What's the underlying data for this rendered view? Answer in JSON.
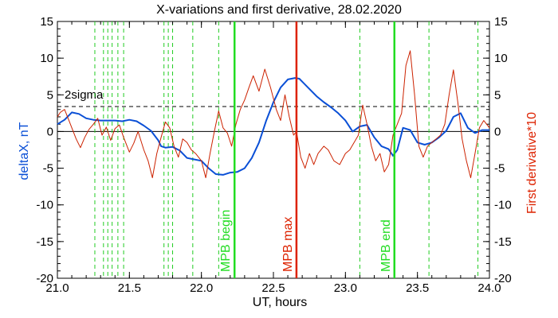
{
  "chart_data": {
    "type": "line",
    "title": "X-variations and first derivative, 28.02.2020",
    "xlabel": "UT, hours",
    "ylabel_left": "deltaX, nT",
    "ylabel_right": "First derivative*10",
    "xlim": [
      21.0,
      24.0
    ],
    "ylim": [
      -20,
      15
    ],
    "x_ticks": [
      "21.0",
      "21.5",
      "22.0",
      "22.5",
      "23.0",
      "23.5",
      "24.0"
    ],
    "y_ticks": [
      "-20",
      "-15",
      "-10",
      "-5",
      "0",
      "5",
      "10",
      "15"
    ],
    "y_tick_values": [
      -20,
      -15,
      -10,
      -5,
      0,
      5,
      10,
      15
    ],
    "x_tick_values": [
      21.0,
      21.5,
      22.0,
      22.5,
      23.0,
      23.5,
      24.0
    ],
    "sigma_label": "2sigma",
    "sigma_level": 3.4,
    "zero_line": 0,
    "colors": {
      "deltaX": "#0a4fd6",
      "derivative": "#cc2200",
      "mpb_boundary": "#22dd22",
      "mpb_max": "#dd2200",
      "dashed_marker": "#22cc22",
      "sigma": "#000000",
      "right_axis_label": "#dd2200",
      "left_axis_label": "#0a4fd6"
    },
    "dashed_markers_x": [
      21.26,
      21.32,
      21.35,
      21.38,
      21.42,
      21.46,
      21.74,
      21.77,
      21.8,
      21.94,
      22.12,
      23.1,
      23.58,
      23.92
    ],
    "vertical_lines": [
      {
        "x": 22.23,
        "label": "MPB begin",
        "color": "#22dd22"
      },
      {
        "x": 22.66,
        "label": "MPB max",
        "color": "#dd2200"
      },
      {
        "x": 23.34,
        "label": "MPB end",
        "color": "#22dd22"
      }
    ],
    "series": [
      {
        "name": "deltaX",
        "axis": "left",
        "x": [
          21.0,
          21.05,
          21.1,
          21.15,
          21.2,
          21.25,
          21.3,
          21.35,
          21.4,
          21.45,
          21.5,
          21.55,
          21.6,
          21.65,
          21.7,
          21.72,
          21.75,
          21.8,
          21.85,
          21.9,
          21.95,
          22.0,
          22.05,
          22.1,
          22.15,
          22.2,
          22.25,
          22.3,
          22.35,
          22.4,
          22.45,
          22.5,
          22.55,
          22.6,
          22.65,
          22.68,
          22.7,
          22.75,
          22.8,
          22.85,
          22.9,
          22.95,
          23.0,
          23.05,
          23.1,
          23.15,
          23.2,
          23.25,
          23.3,
          23.33,
          23.36,
          23.4,
          23.45,
          23.5,
          23.55,
          23.6,
          23.65,
          23.7,
          23.75,
          23.8,
          23.85,
          23.9,
          23.95,
          24.0
        ],
        "values": [
          1.0,
          1.6,
          2.6,
          2.4,
          1.8,
          1.6,
          1.5,
          1.5,
          1.5,
          1.4,
          1.6,
          1.4,
          0.8,
          0.1,
          -1.2,
          -2.0,
          -2.2,
          -2.1,
          -2.6,
          -3.6,
          -3.8,
          -4.0,
          -5.0,
          -5.8,
          -5.9,
          -5.6,
          -5.5,
          -5.0,
          -3.6,
          -1.5,
          1.5,
          4.0,
          6.0,
          7.1,
          7.3,
          7.2,
          6.8,
          5.8,
          4.8,
          4.0,
          3.3,
          2.5,
          1.5,
          0.0,
          0.7,
          0.9,
          -0.8,
          -2.0,
          -2.4,
          -3.3,
          -2.5,
          0.5,
          0.2,
          -1.5,
          -1.8,
          -1.5,
          -0.8,
          0.1,
          2.0,
          2.5,
          0.5,
          -0.2,
          0.2,
          0.2
        ]
      },
      {
        "name": "First derivative*10",
        "axis": "right",
        "x": [
          21.0,
          21.02,
          21.05,
          21.08,
          21.1,
          21.13,
          21.16,
          21.19,
          21.22,
          21.25,
          21.28,
          21.31,
          21.34,
          21.37,
          21.4,
          21.43,
          21.46,
          21.5,
          21.53,
          21.56,
          21.6,
          21.63,
          21.66,
          21.69,
          21.72,
          21.75,
          21.78,
          21.81,
          21.84,
          21.87,
          21.9,
          21.93,
          21.96,
          22.0,
          22.03,
          22.06,
          22.09,
          22.12,
          22.15,
          22.18,
          22.21,
          22.24,
          22.27,
          22.3,
          22.33,
          22.36,
          22.4,
          22.44,
          22.48,
          22.52,
          22.55,
          22.58,
          22.61,
          22.64,
          22.66,
          22.69,
          22.72,
          22.75,
          22.78,
          22.81,
          22.85,
          22.88,
          22.92,
          22.96,
          23.0,
          23.03,
          23.06,
          23.09,
          23.12,
          23.15,
          23.18,
          23.21,
          23.24,
          23.27,
          23.3,
          23.33,
          23.36,
          23.39,
          23.42,
          23.45,
          23.48,
          23.51,
          23.54,
          23.57,
          23.6,
          23.63,
          23.66,
          23.69,
          23.72,
          23.75,
          23.78,
          23.81,
          23.84,
          23.87,
          23.9,
          23.93,
          23.96,
          24.0
        ],
        "values": [
          2.0,
          2.6,
          3.0,
          1.5,
          0.5,
          -1.0,
          -2.2,
          -0.8,
          0.3,
          1.0,
          1.8,
          -0.5,
          0.6,
          -1.2,
          0.4,
          0.9,
          -0.8,
          -2.8,
          -1.6,
          0.0,
          -2.5,
          -4.0,
          -6.3,
          -3.0,
          -0.8,
          1.3,
          0.5,
          -2.0,
          -3.5,
          -1.0,
          -1.5,
          -2.5,
          -3.0,
          -4.0,
          -6.3,
          -3.0,
          0.0,
          2.8,
          0.5,
          -0.2,
          -2.0,
          1.0,
          3.0,
          4.3,
          6.0,
          7.6,
          5.5,
          8.5,
          6.0,
          3.0,
          1.5,
          5.0,
          2.0,
          -0.5,
          0.0,
          -3.5,
          -5.0,
          -3.0,
          -4.5,
          -3.0,
          -2.0,
          -2.5,
          -4.0,
          -4.5,
          -3.0,
          -2.5,
          -1.5,
          -0.5,
          3.6,
          1.0,
          -2.0,
          -4.0,
          -3.0,
          -5.5,
          -4.5,
          -0.5,
          1.0,
          2.5,
          9.0,
          11.0,
          5.0,
          -2.0,
          -3.5,
          -2.0,
          -1.5,
          -1.0,
          -0.5,
          1.0,
          5.0,
          8.4,
          4.0,
          -1.0,
          -4.0,
          -6.3,
          -3.0,
          0.5,
          1.5,
          0.5
        ]
      }
    ]
  }
}
